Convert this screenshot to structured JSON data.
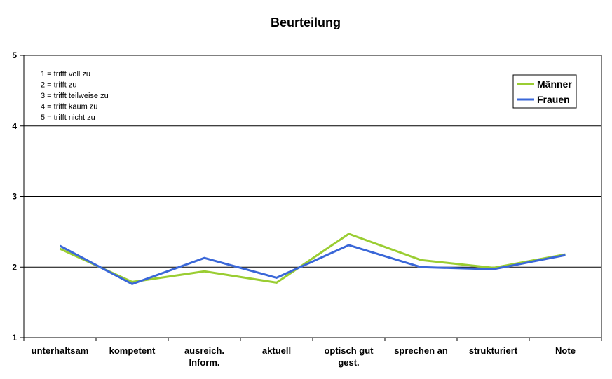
{
  "chart_data": {
    "type": "line",
    "title": "Beurteilung",
    "categories": [
      [
        "unterhaltsam"
      ],
      [
        "kompetent"
      ],
      [
        "ausreich.",
        "Inform."
      ],
      [
        "aktuell"
      ],
      [
        "optisch gut",
        "gest."
      ],
      [
        "sprechen an"
      ],
      [
        "strukturiert"
      ],
      [
        "Note"
      ]
    ],
    "ylim": [
      1,
      5
    ],
    "yticks": [
      1,
      2,
      3,
      4,
      5
    ],
    "grid": true,
    "legend_position": "top-right",
    "series": [
      {
        "name": "Männer",
        "color": "#9ACD32",
        "values": [
          2.26,
          1.79,
          1.94,
          1.78,
          2.47,
          2.1,
          1.99,
          2.18
        ]
      },
      {
        "name": "Frauen",
        "color": "#3A67D8",
        "values": [
          2.3,
          1.76,
          2.13,
          1.85,
          2.31,
          2.0,
          1.97,
          2.17
        ]
      }
    ],
    "annotation": [
      "1 = trifft voll zu",
      "2 = trifft zu",
      "3 = trifft teilweise zu",
      "4 = trifft kaum zu",
      "5 = trifft nicht zu"
    ]
  }
}
